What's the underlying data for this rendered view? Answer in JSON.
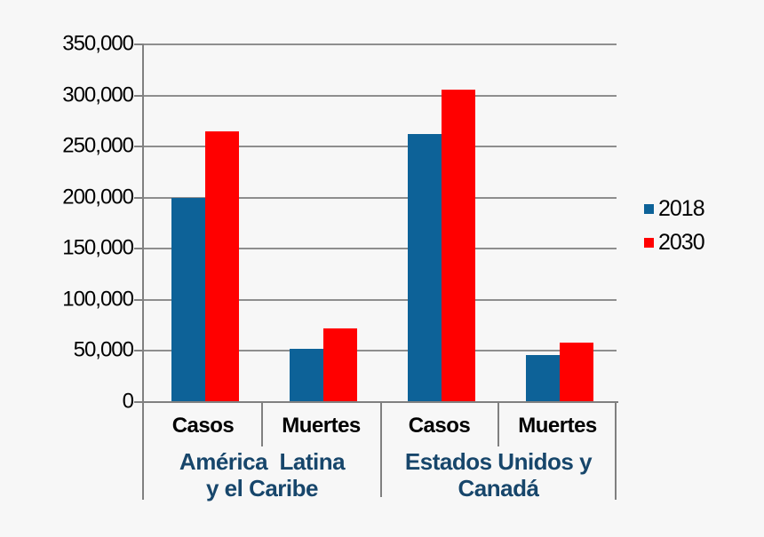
{
  "chart_data": {
    "type": "bar",
    "title": "",
    "xlabel": "",
    "ylabel": "",
    "categories": [
      "Casos",
      "Muertes",
      "Casos",
      "Muertes"
    ],
    "series": [
      {
        "name": "2018",
        "color": "#0d6298",
        "values": [
          200000,
          52000,
          262000,
          46000
        ]
      },
      {
        "name": "2030",
        "color": "#ff0000",
        "values": [
          265000,
          72000,
          306000,
          58000
        ]
      }
    ],
    "groups": [
      {
        "label_lines": [
          "América  Latina",
          "y el Caribe"
        ],
        "categories": [
          "Casos",
          "Muertes"
        ]
      },
      {
        "label_lines": [
          "Estados Unidos y",
          "Canadá"
        ],
        "categories": [
          "Casos",
          "Muertes"
        ]
      }
    ],
    "ylim": [
      0,
      350000
    ],
    "ytick_step": 50000,
    "ytick_labels": [
      "0",
      "50,000",
      "100,000",
      "150,000",
      "200,000",
      "250,000",
      "300,000",
      "350,000"
    ],
    "grid": true,
    "legend_position": "right",
    "legend": [
      "2018",
      "2030"
    ]
  },
  "colors": {
    "background": "#f7f7f7",
    "gridline": "#8e8e8e",
    "axis": "#808080",
    "series_2018": "#0d6298",
    "series_2030": "#ff0000",
    "category_label_text": "#000000",
    "group_label_text": "#17466b",
    "tick_label_text": "#000000"
  }
}
